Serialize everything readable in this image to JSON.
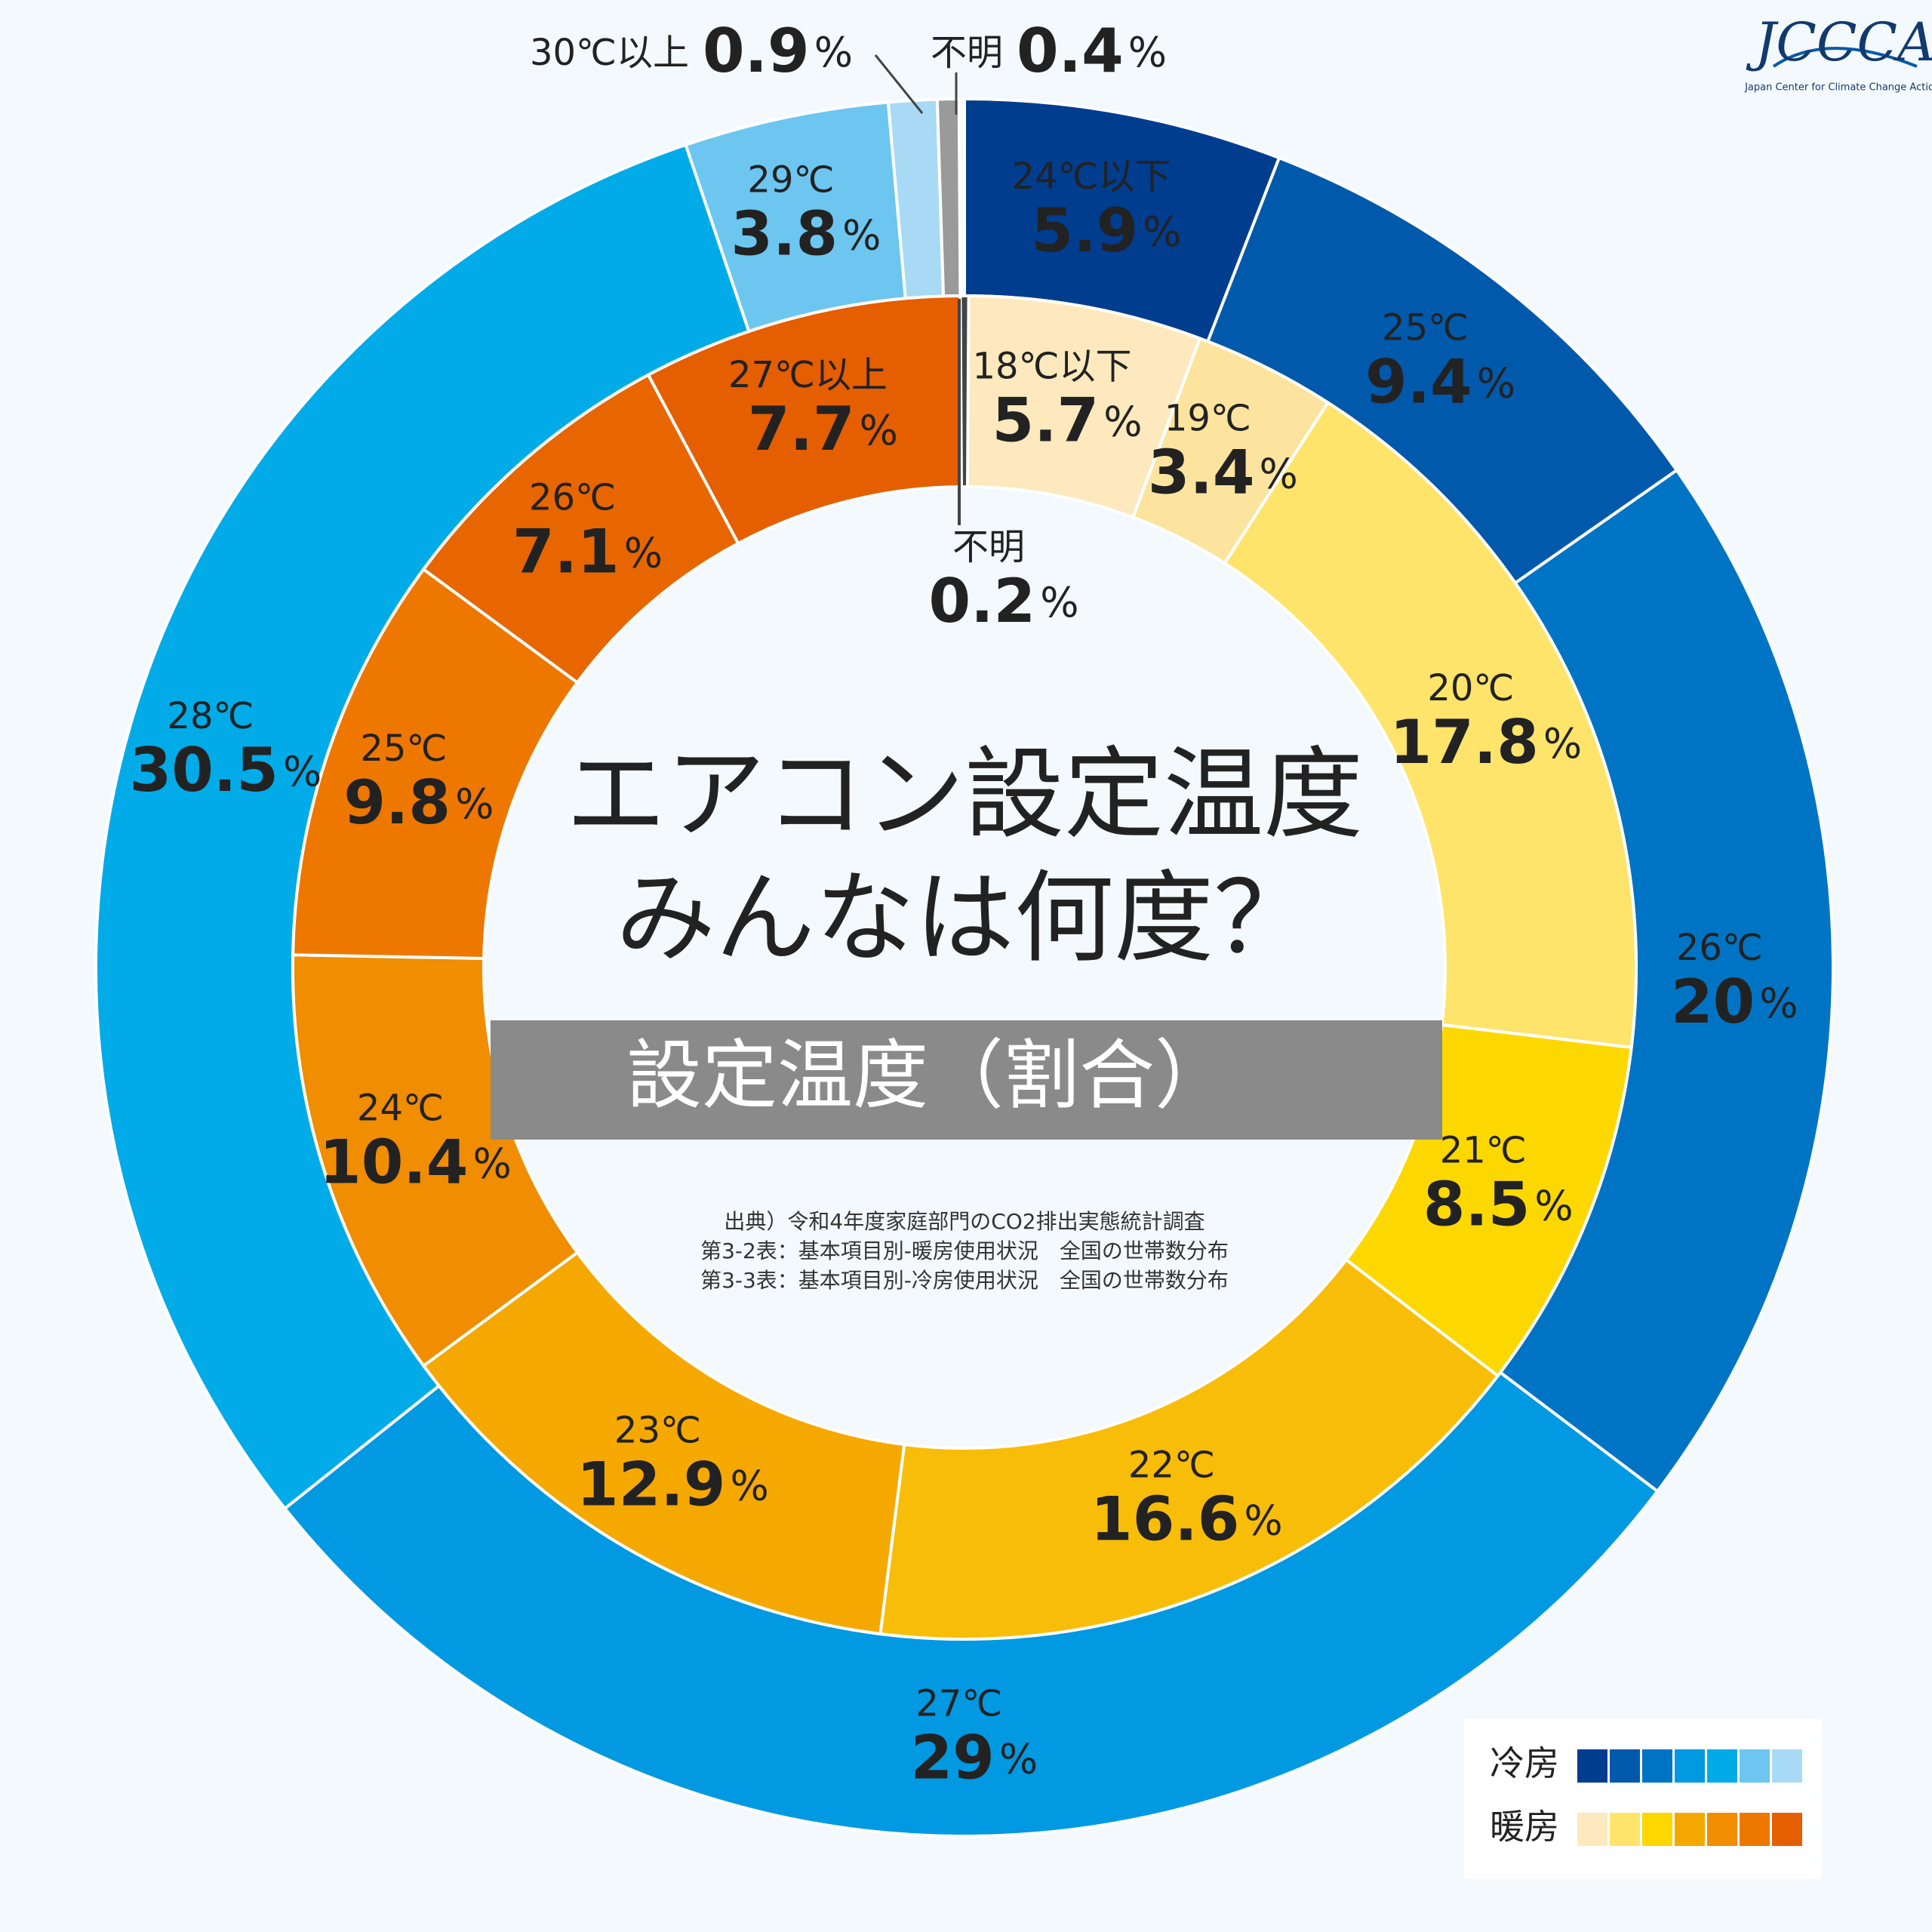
{
  "chart_data": {
    "type": "donut",
    "title": "エアコン設定温度",
    "subtitle": "みんなは何度？",
    "label": "設定温度（割合）",
    "source": [
      "出典）令和4年度家庭部門のCO2排出実態統計調査",
      "第3-2表：基本項目別-暖房使用状況　全国の世帯数分布",
      "第3-3表：基本項目別-冷房使用状況　全国の世帯数分布"
    ],
    "logo": "JCCCA",
    "logo_subtitle": "Japan Center for Climate Change Actions",
    "unit": "%",
    "series": [
      {
        "name": "冷房",
        "ring": "outer",
        "categories": [
          "24℃以下",
          "25℃",
          "26℃",
          "27℃",
          "28℃",
          "29℃",
          "30℃以上",
          "不明"
        ],
        "values": [
          5.9,
          9.4,
          20,
          29,
          30.5,
          3.8,
          0.9,
          0.4
        ],
        "colors": [
          "#003d8f",
          "#0059ab",
          "#0074c4",
          "#0099e2",
          "#00abe8",
          "#6cc6f0",
          "#a8daf5",
          "#9a9a9a"
        ],
        "legend_colors": [
          "#003d8f",
          "#0059ab",
          "#0074c4",
          "#0099e2",
          "#00abe8",
          "#6cc6f0",
          "#a8daf5"
        ]
      },
      {
        "name": "暖房",
        "ring": "inner",
        "categories": [
          "18℃以下",
          "19℃",
          "20℃",
          "21℃",
          "22℃",
          "23℃",
          "24℃",
          "25℃",
          "26℃",
          "27℃以上",
          "不明"
        ],
        "values": [
          5.7,
          3.4,
          17.8,
          8.5,
          16.6,
          12.9,
          10.4,
          9.8,
          7.1,
          7.7,
          0.2
        ],
        "colors": [
          "#fde9bd",
          "#fde49e",
          "#fee46a",
          "#fdd800",
          "#f8bd08",
          "#f5a900",
          "#f08d00",
          "#ee7700",
          "#e86600",
          "#e55e00",
          "#444444"
        ],
        "legend_colors": [
          "#fde9bd",
          "#fee46a",
          "#fdd800",
          "#f5a900",
          "#f08d00",
          "#ee7700",
          "#e55e00"
        ]
      }
    ]
  }
}
